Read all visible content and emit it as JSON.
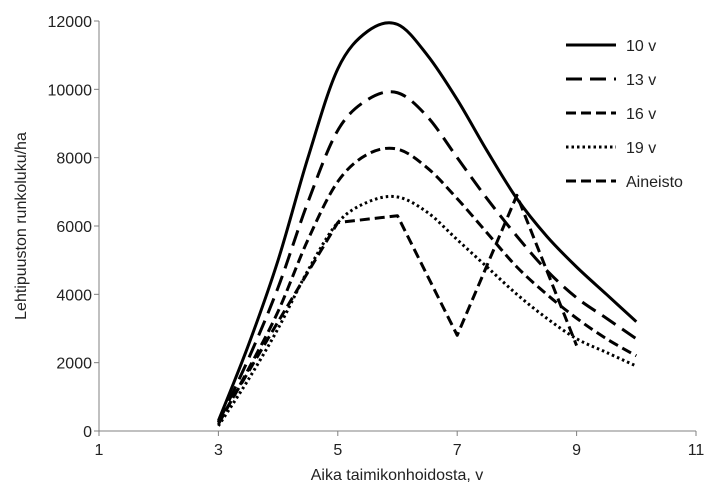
{
  "chart_data": {
    "type": "line",
    "xlabel": "Aika taimikonhoidosta, v",
    "ylabel": "Lehtipuuston runkoluku/ha",
    "xlim": [
      1,
      11
    ],
    "ylim": [
      0,
      12000
    ],
    "xticks": [
      1,
      3,
      5,
      7,
      9,
      11
    ],
    "yticks": [
      0,
      2000,
      4000,
      6000,
      8000,
      10000,
      12000
    ],
    "grid": false,
    "legend_position": "top-right",
    "series": [
      {
        "name": "10 v",
        "style": "solid",
        "x": [
          3,
          3.5,
          4,
          4.5,
          5,
          5.5,
          6,
          6.5,
          7,
          7.5,
          8,
          8.5,
          9,
          9.5,
          10
        ],
        "y": [
          300,
          2500,
          5000,
          8000,
          10600,
          11700,
          11900,
          11000,
          9700,
          8200,
          6800,
          5700,
          4800,
          4000,
          3200
        ]
      },
      {
        "name": "13 v",
        "style": "long-dash",
        "x": [
          3,
          3.5,
          4,
          4.5,
          5,
          5.5,
          6,
          6.5,
          7,
          7.5,
          8,
          8.5,
          9,
          9.5,
          10
        ],
        "y": [
          250,
          2100,
          4200,
          6700,
          8800,
          9700,
          9900,
          9200,
          8000,
          6800,
          5700,
          4700,
          3900,
          3300,
          2700
        ]
      },
      {
        "name": "16 v",
        "style": "dash",
        "x": [
          3,
          3.5,
          4,
          4.5,
          5,
          5.5,
          6,
          6.5,
          7,
          7.5,
          8,
          8.5,
          9,
          9.5,
          10
        ],
        "y": [
          200,
          1800,
          3500,
          5600,
          7300,
          8100,
          8250,
          7700,
          6800,
          5800,
          4800,
          4000,
          3300,
          2700,
          2200
        ]
      },
      {
        "name": "19 v",
        "style": "dot",
        "x": [
          3,
          3.5,
          4,
          4.5,
          5,
          5.5,
          6,
          6.5,
          7,
          7.5,
          8,
          8.5,
          9,
          9.5,
          10
        ],
        "y": [
          150,
          1500,
          3000,
          4700,
          6100,
          6700,
          6850,
          6400,
          5600,
          4800,
          4000,
          3300,
          2700,
          2300,
          1900
        ]
      },
      {
        "name": "Aineisto",
        "style": "medium-dash",
        "x": [
          3,
          4,
          5,
          6,
          7,
          8,
          9
        ],
        "y": [
          250,
          3200,
          6100,
          6300,
          2800,
          6900,
          2500
        ]
      }
    ]
  }
}
